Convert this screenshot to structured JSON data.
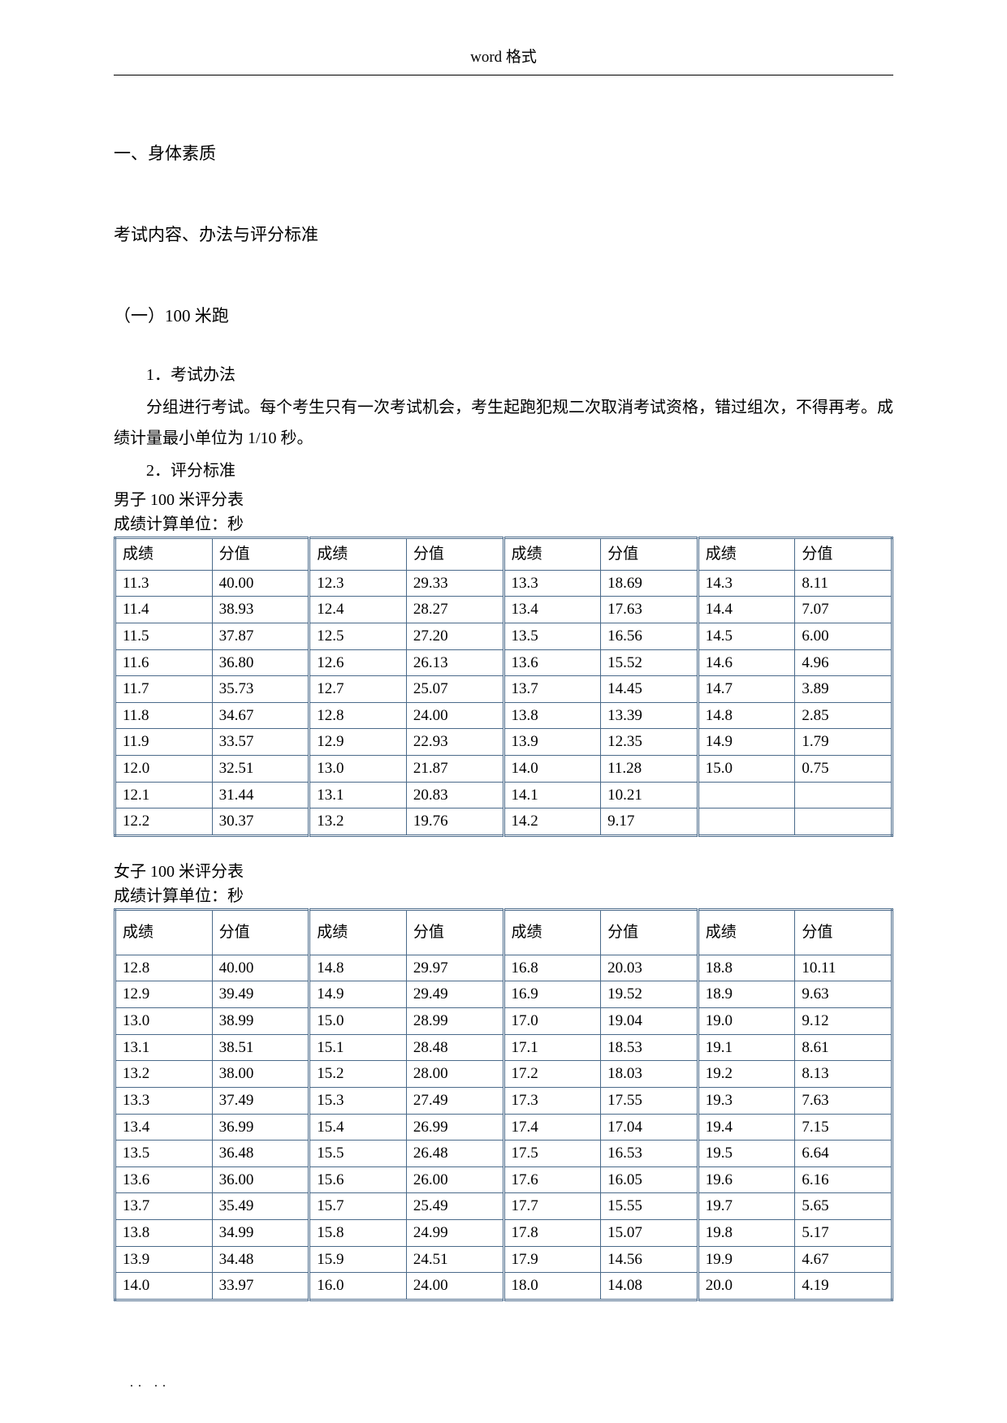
{
  "header": {
    "text": "word 格式"
  },
  "section1": {
    "title": "一、身体素质",
    "subtitle": "考试内容、办法与评分标准",
    "item1": {
      "heading": "（一）100 米跑",
      "p1_label": "1．考试办法",
      "p1_body": "分组进行考试。每个考生只有一次考试机会，考生起跑犯规二次取消考试资格，错过组次，不得再考。成绩计量最小单位为 1/10 秒。",
      "p2_label": "2．评分标准"
    }
  },
  "table_common": {
    "col_score": "成绩",
    "col_value": "分值"
  },
  "table_male": {
    "title": "男子 100 米评分表",
    "unit": "成绩计算单位：秒",
    "rows": [
      [
        "11.3",
        "40.00",
        "12.3",
        "29.33",
        "13.3",
        "18.69",
        "14.3",
        "8.11"
      ],
      [
        "11.4",
        "38.93",
        "12.4",
        "28.27",
        "13.4",
        "17.63",
        "14.4",
        "7.07"
      ],
      [
        "11.5",
        "37.87",
        "12.5",
        "27.20",
        "13.5",
        "16.56",
        "14.5",
        "6.00"
      ],
      [
        "11.6",
        "36.80",
        "12.6",
        "26.13",
        "13.6",
        "15.52",
        "14.6",
        "4.96"
      ],
      [
        "11.7",
        "35.73",
        "12.7",
        "25.07",
        "13.7",
        "14.45",
        "14.7",
        "3.89"
      ],
      [
        "11.8",
        "34.67",
        "12.8",
        "24.00",
        "13.8",
        "13.39",
        "14.8",
        "2.85"
      ],
      [
        "11.9",
        "33.57",
        "12.9",
        "22.93",
        "13.9",
        "12.35",
        "14.9",
        "1.79"
      ],
      [
        "12.0",
        "32.51",
        "13.0",
        "21.87",
        "14.0",
        "11.28",
        "15.0",
        "0.75"
      ],
      [
        "12.1",
        "31.44",
        "13.1",
        "20.83",
        "14.1",
        "10.21",
        "",
        ""
      ],
      [
        "12.2",
        "30.37",
        "13.2",
        "19.76",
        "14.2",
        "9.17",
        "",
        ""
      ]
    ],
    "border_color": "#4a6a8a"
  },
  "table_female": {
    "title": "女子 100 米评分表",
    "unit": "成绩计算单位：秒",
    "rows": [
      [
        "12.8",
        "40.00",
        "14.8",
        "29.97",
        "16.8",
        "20.03",
        "18.8",
        "10.11"
      ],
      [
        "12.9",
        "39.49",
        "14.9",
        "29.49",
        "16.9",
        "19.52",
        "18.9",
        "9.63"
      ],
      [
        "13.0",
        "38.99",
        "15.0",
        "28.99",
        "17.0",
        "19.04",
        "19.0",
        "9.12"
      ],
      [
        "13.1",
        "38.51",
        "15.1",
        "28.48",
        "17.1",
        "18.53",
        "19.1",
        "8.61"
      ],
      [
        "13.2",
        "38.00",
        "15.2",
        "28.00",
        "17.2",
        "18.03",
        "19.2",
        "8.13"
      ],
      [
        "13.3",
        "37.49",
        "15.3",
        "27.49",
        "17.3",
        "17.55",
        "19.3",
        "7.63"
      ],
      [
        "13.4",
        "36.99",
        "15.4",
        "26.99",
        "17.4",
        "17.04",
        "19.4",
        "7.15"
      ],
      [
        "13.5",
        "36.48",
        "15.5",
        "26.48",
        "17.5",
        "16.53",
        "19.5",
        "6.64"
      ],
      [
        "13.6",
        "36.00",
        "15.6",
        "26.00",
        "17.6",
        "16.05",
        "19.6",
        "6.16"
      ],
      [
        "13.7",
        "35.49",
        "15.7",
        "25.49",
        "17.7",
        "15.55",
        "19.7",
        "5.65"
      ],
      [
        "13.8",
        "34.99",
        "15.8",
        "24.99",
        "17.8",
        "15.07",
        "19.8",
        "5.17"
      ],
      [
        "13.9",
        "34.48",
        "15.9",
        "24.51",
        "17.9",
        "14.56",
        "19.9",
        "4.67"
      ],
      [
        "14.0",
        "33.97",
        "16.0",
        "24.00",
        "18.0",
        "14.08",
        "20.0",
        "4.19"
      ]
    ],
    "border_color": "#4a6a8a"
  },
  "footer": {
    "text": ".. .."
  }
}
